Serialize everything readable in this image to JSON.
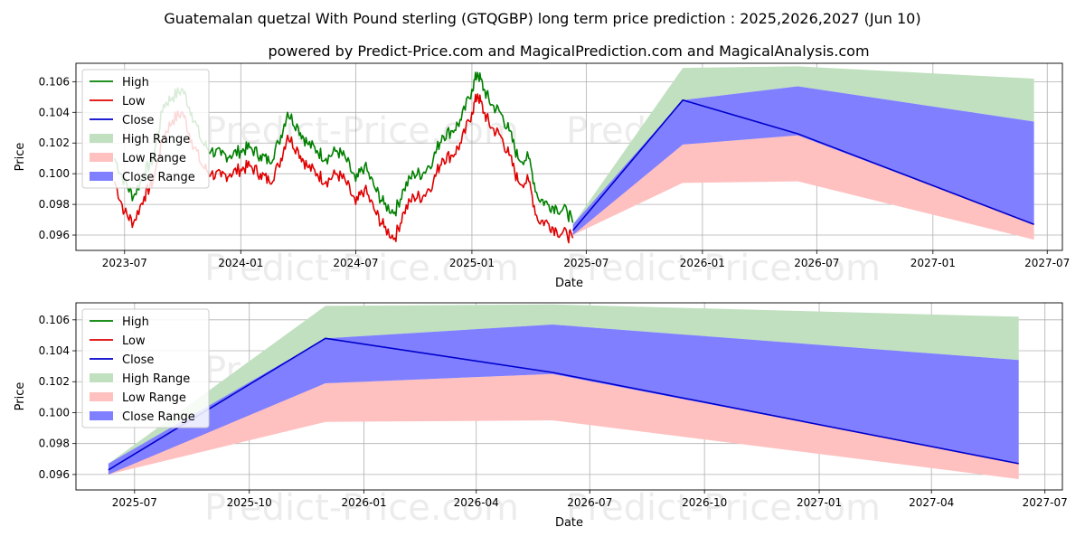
{
  "title": "Guatemalan quetzal With Pound sterling (GTQGBP) long term price prediction : 2025,2026,2027 (Jun 10)",
  "subtitle": "powered by Predict-Price.com and MagicalPrediction.com and MagicalAnalysis.com",
  "watermark": "Predict-Price.com",
  "colors": {
    "high": "#008000",
    "low": "#e00000",
    "close": "#0000cc",
    "high_range": "#c0e0c0",
    "low_range": "#ffc0c0",
    "close_range": "#7f7fff"
  },
  "chart_data": [
    {
      "type": "line",
      "xlabel": "Date",
      "ylabel": "Price",
      "xlim": [
        "2023-04-15",
        "2027-07-25"
      ],
      "ylim": [
        0.095,
        0.1072
      ],
      "x_ticks": [
        "2023-07",
        "2024-01",
        "2024-07",
        "2025-01",
        "2025-07",
        "2026-01",
        "2026-07",
        "2027-01",
        "2027-07"
      ],
      "y_ticks": [
        "0.096",
        "0.098",
        "0.100",
        "0.102",
        "0.104",
        "0.106"
      ],
      "grid": true,
      "legend_position": "top-left",
      "legend": [
        "High",
        "Low",
        "Close",
        "High Range",
        "Low Range",
        "Close Range"
      ],
      "history": {
        "x": [
          "2023-06-15",
          "2023-07-01",
          "2023-07-15",
          "2023-08-01",
          "2023-08-15",
          "2023-09-01",
          "2023-09-15",
          "2023-10-01",
          "2023-10-15",
          "2023-11-01",
          "2023-11-15",
          "2023-12-01",
          "2023-12-15",
          "2024-01-01",
          "2024-01-15",
          "2024-02-01",
          "2024-02-15",
          "2024-03-01",
          "2024-03-15",
          "2024-04-01",
          "2024-04-15",
          "2024-05-01",
          "2024-05-15",
          "2024-06-01",
          "2024-06-15",
          "2024-07-01",
          "2024-07-15",
          "2024-08-01",
          "2024-08-15",
          "2024-09-01",
          "2024-09-15",
          "2024-10-01",
          "2024-10-15",
          "2024-11-01",
          "2024-11-15",
          "2024-12-01",
          "2024-12-15",
          "2025-01-01",
          "2025-01-10",
          "2025-01-20",
          "2025-02-01",
          "2025-02-15",
          "2025-03-01",
          "2025-03-15",
          "2025-04-01",
          "2025-04-15",
          "2025-05-01",
          "2025-05-15",
          "2025-06-01",
          "2025-06-10"
        ],
        "high": [
          0.101,
          0.0995,
          0.0985,
          0.1,
          0.101,
          0.1045,
          0.105,
          0.1055,
          0.104,
          0.102,
          0.1015,
          0.1012,
          0.1012,
          0.1015,
          0.1017,
          0.1012,
          0.1008,
          0.102,
          0.104,
          0.103,
          0.102,
          0.1015,
          0.101,
          0.1015,
          0.101,
          0.0995,
          0.1005,
          0.099,
          0.098,
          0.0975,
          0.099,
          0.1,
          0.1,
          0.101,
          0.1025,
          0.1028,
          0.1035,
          0.1055,
          0.1066,
          0.1055,
          0.1045,
          0.104,
          0.1028,
          0.101,
          0.101,
          0.0985,
          0.098,
          0.0978,
          0.0975,
          0.0968
        ],
        "low": [
          0.0995,
          0.0975,
          0.0968,
          0.0985,
          0.0995,
          0.1025,
          0.1035,
          0.104,
          0.1022,
          0.1005,
          0.1,
          0.0998,
          0.1,
          0.1003,
          0.1005,
          0.1,
          0.0995,
          0.1005,
          0.1025,
          0.1015,
          0.1005,
          0.1,
          0.0995,
          0.1,
          0.0995,
          0.098,
          0.099,
          0.0975,
          0.0965,
          0.0958,
          0.0975,
          0.0985,
          0.0985,
          0.0995,
          0.101,
          0.1012,
          0.102,
          0.104,
          0.1052,
          0.104,
          0.103,
          0.1025,
          0.1012,
          0.0995,
          0.0995,
          0.097,
          0.0968,
          0.0963,
          0.096,
          0.0958
        ]
      },
      "forecast": {
        "x": [
          "2025-06-10",
          "2025-12-01",
          "2026-06-01",
          "2027-06-10"
        ],
        "close": [
          0.0963,
          0.1048,
          0.1026,
          0.0967
        ],
        "high_range": {
          "upper": [
            0.0967,
            0.1069,
            0.107,
            0.1062
          ],
          "lower": [
            0.0963,
            0.1048,
            0.1057,
            0.1034
          ]
        },
        "close_range": {
          "upper": [
            0.0967,
            0.1048,
            0.1057,
            0.1034
          ],
          "lower": [
            0.096,
            0.1019,
            0.1025,
            0.0967
          ]
        },
        "low_range": {
          "upper": [
            0.0963,
            0.1019,
            0.1025,
            0.0967
          ],
          "lower": [
            0.096,
            0.0994,
            0.0995,
            0.0957
          ]
        }
      }
    },
    {
      "type": "line",
      "xlabel": "Date",
      "ylabel": "Price",
      "xlim": [
        "2025-05-15",
        "2027-07-15"
      ],
      "ylim": [
        0.095,
        0.1071
      ],
      "x_ticks": [
        "2025-07",
        "2025-10",
        "2026-01",
        "2026-04",
        "2026-07",
        "2026-10",
        "2027-01",
        "2027-04",
        "2027-07"
      ],
      "y_ticks": [
        "0.096",
        "0.098",
        "0.100",
        "0.102",
        "0.104",
        "0.106"
      ],
      "grid": true,
      "legend_position": "top-left",
      "legend": [
        "High",
        "Low",
        "Close",
        "High Range",
        "Low Range",
        "Close Range"
      ],
      "forecast": {
        "x": [
          "2025-06-10",
          "2025-12-01",
          "2026-06-01",
          "2027-06-10"
        ],
        "close": [
          0.0963,
          0.1048,
          0.1026,
          0.0967
        ],
        "high_range": {
          "upper": [
            0.0967,
            0.1069,
            0.107,
            0.1062
          ],
          "lower": [
            0.0963,
            0.1048,
            0.1057,
            0.1034
          ]
        },
        "close_range": {
          "upper": [
            0.0967,
            0.1048,
            0.1057,
            0.1034
          ],
          "lower": [
            0.096,
            0.1019,
            0.1025,
            0.0967
          ]
        },
        "low_range": {
          "upper": [
            0.0963,
            0.1019,
            0.1025,
            0.0967
          ],
          "lower": [
            0.096,
            0.0994,
            0.0995,
            0.0957
          ]
        }
      }
    }
  ]
}
